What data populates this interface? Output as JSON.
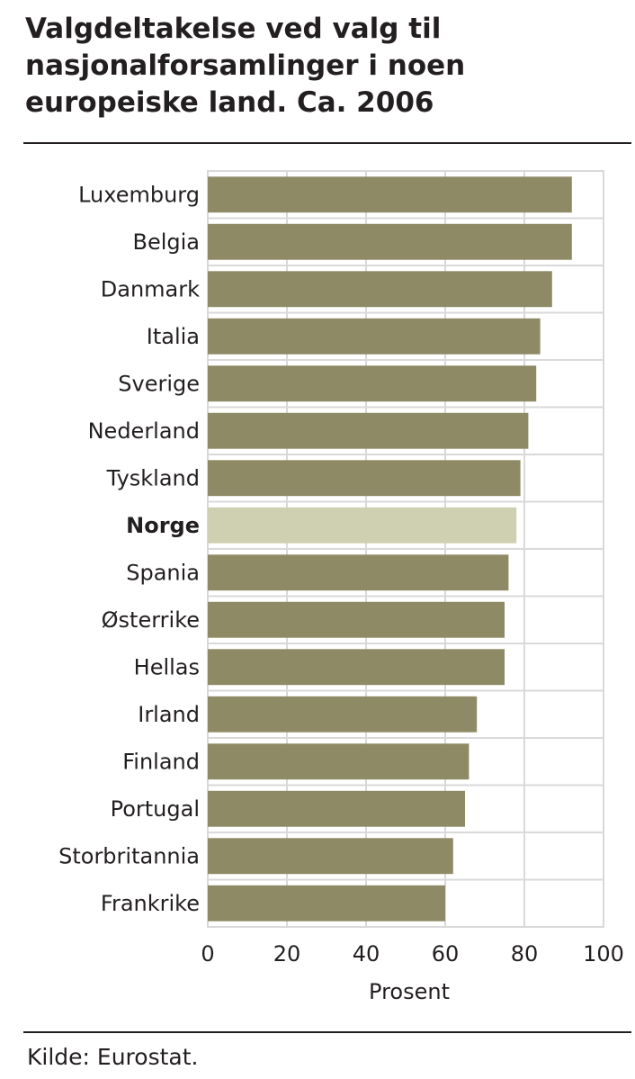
{
  "title": "Valgdeltakelse ved valg til nasjonalforsamlinger i noen europeiske land. Ca. 2006",
  "source": "Kilde: Eurostat.",
  "colors": {
    "bar": "#8e8a66",
    "highlight": "#cfcfb1",
    "grid": "#d9d9d9",
    "text": "#231f20"
  },
  "chart_data": {
    "type": "bar",
    "orientation": "horizontal",
    "categories": [
      "Luxemburg",
      "Belgia",
      "Danmark",
      "Italia",
      "Sverige",
      "Nederland",
      "Tyskland",
      "Norge",
      "Spania",
      "Østerrike",
      "Hellas",
      "Irland",
      "Finland",
      "Portugal",
      "Storbritannia",
      "Frankrike"
    ],
    "values": [
      92,
      92,
      87,
      84,
      83,
      81,
      79,
      78,
      76,
      75,
      75,
      68,
      66,
      65,
      62,
      60
    ],
    "highlight": "Norge",
    "xlabel": "Prosent",
    "ylabel": "",
    "xlim": [
      0,
      100
    ],
    "xticks": [
      "0",
      "20",
      "40",
      "60",
      "80",
      "100"
    ],
    "grid": true
  }
}
